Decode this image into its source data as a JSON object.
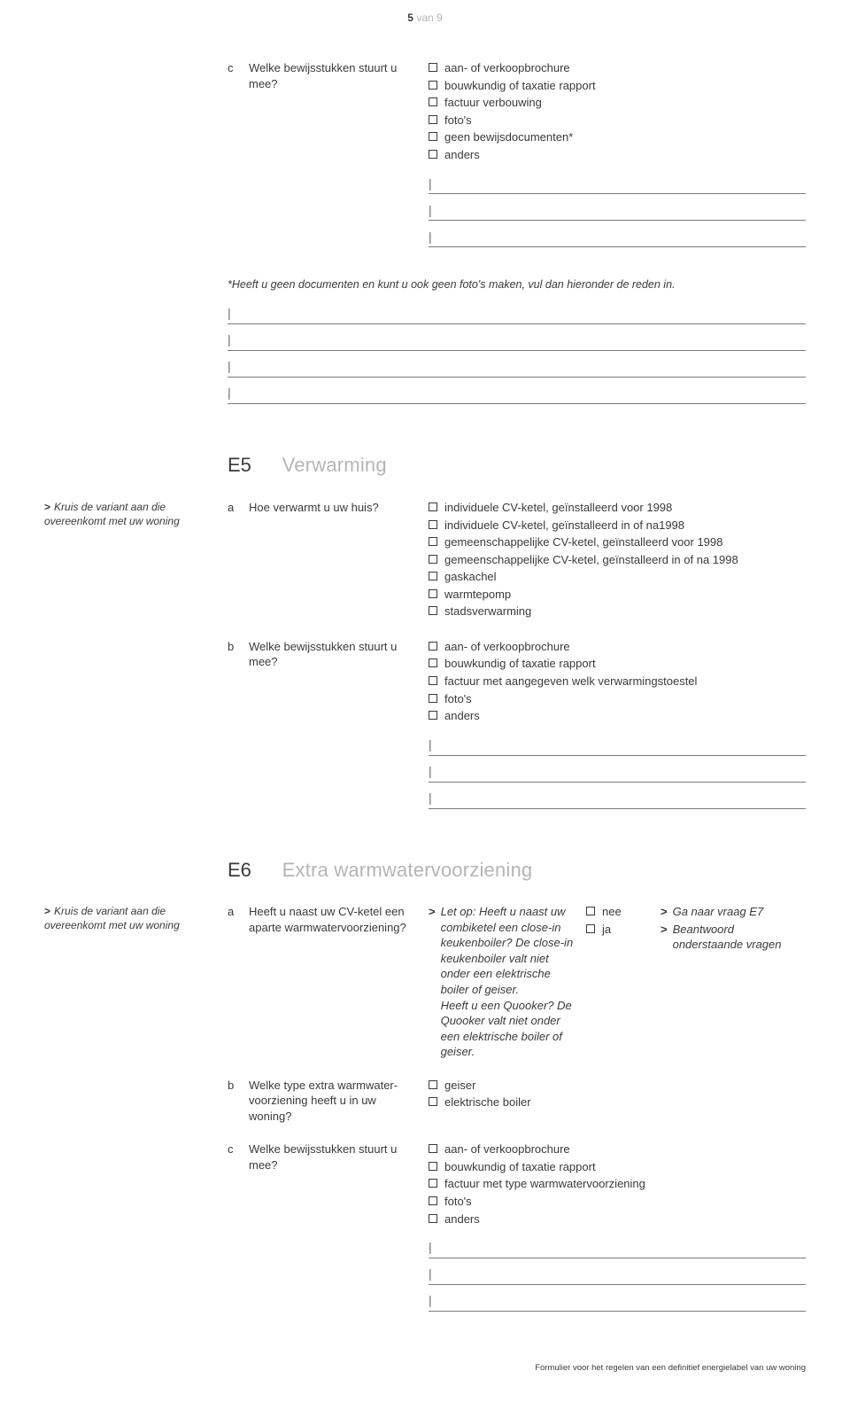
{
  "page": {
    "current": "5",
    "of_word": "van",
    "total": "9"
  },
  "q_c_top": {
    "letter": "c",
    "text": "Welke bewijsstukken stuurt u mee?",
    "options": [
      "aan- of verkoopbrochure",
      "bouwkundig of taxatie rapport",
      "factuur verbouwing",
      "foto's",
      "geen bewijsdocumenten*",
      "anders"
    ]
  },
  "note_star": "*Heeft u geen documenten en kunt u ook geen foto's maken, vul dan hieronder de reden in.",
  "e5": {
    "code": "E5",
    "title": "Verwarming",
    "margin_note": "Kruis de variant aan die overeenkomt met uw woning",
    "a": {
      "letter": "a",
      "text": "Hoe verwarmt u uw huis?",
      "options": [
        "individuele CV-ketel, geïnstalleerd voor 1998",
        "individuele CV-ketel, geïnstalleerd in of na1998",
        "gemeenschappelijke CV-ketel, geïnstalleerd voor 1998",
        "gemeenschappelijke CV-ketel, geïnstalleerd in of na 1998",
        "gaskachel",
        "warmtepomp",
        "stadsverwarming"
      ]
    },
    "b": {
      "letter": "b",
      "text": "Welke bewijsstukken stuurt u mee?",
      "options": [
        "aan- of verkoopbrochure",
        "bouwkundig of taxatie rapport",
        "factuur met aangegeven welk verwarmingstoestel",
        "foto's",
        "anders"
      ]
    }
  },
  "e6": {
    "code": "E6",
    "title": "Extra warmwatervoorziening",
    "margin_note": "Kruis de variant aan die overeenkomt met uw woning",
    "a": {
      "letter": "a",
      "text": "Heeft u naast uw CV-ketel een aparte warmwatervoorziening?",
      "hint": "Let op: Heeft u naast uw combiketel een close-in keukenboiler? De close-in keukenboiler valt niet onder een elektrische boiler of geiser.\nHeeft u een Quooker? De Quooker valt niet onder een elektrische boiler of geiser.",
      "nee": "nee",
      "ja": "ja",
      "action_nee": "Ga naar vraag E7",
      "action_ja": "Beantwoord onderstaande vragen"
    },
    "b": {
      "letter": "b",
      "text": "Welke type extra warmwater­voorziening heeft u in uw woning?",
      "options": [
        "geiser",
        "elektrische boiler"
      ]
    },
    "c": {
      "letter": "c",
      "text": "Welke bewijsstukken stuurt u mee?",
      "options": [
        "aan- of verkoopbrochure",
        "bouwkundig of taxatie rapport",
        "factuur met type warmwatervoorziening",
        "foto's",
        "anders"
      ]
    }
  },
  "footer": "Formulier voor het regelen van een definitief energielabel van uw woning",
  "colors": {
    "text": "#3a3a3a",
    "muted": "#b5b5b5",
    "line": "#7a7a7a",
    "background": "#ffffff"
  }
}
